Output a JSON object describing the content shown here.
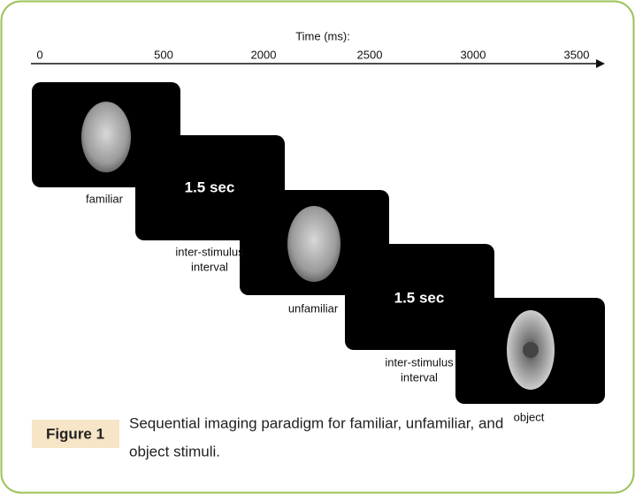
{
  "axis": {
    "title": "Time (ms):",
    "ticks": [
      "0",
      "500",
      "2000",
      "2500",
      "3000",
      "3500"
    ]
  },
  "panels": [
    {
      "label": [
        "familiar"
      ]
    },
    {
      "text": "1.5 sec",
      "label": [
        "inter-stimulus",
        "interval"
      ]
    },
    {
      "label": [
        "unfamiliar"
      ]
    },
    {
      "text": "1.5 sec",
      "label": [
        "inter-stimulus",
        "interval"
      ]
    },
    {
      "label": [
        "object"
      ]
    }
  ],
  "caption": {
    "figure": "Figure 1",
    "lines": [
      "Sequential imaging paradigm for familiar, unfamiliar, and",
      "object stimuli."
    ]
  }
}
